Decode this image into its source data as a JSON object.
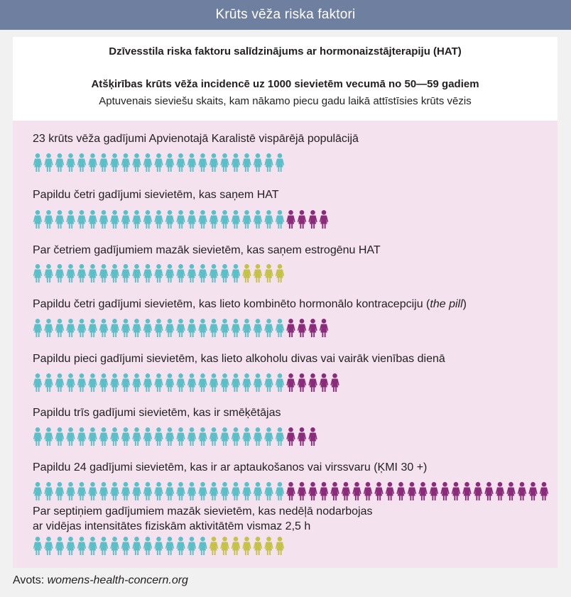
{
  "title": "Krūts vēža riska faktori",
  "header": {
    "line1": "Dzīvesstila riska faktoru salīdzinājums ar hormonaizstājterapiju (HAT)",
    "line2": "Atšķirības krūts vēža incidencē uz 1000 sievietēm vecumā no 50—59 gadiem",
    "line3": "Aptuvenais sieviešu skaits, kam nākamo piecu gadu laikā attīstīsies krūts vēzis"
  },
  "colors": {
    "baseline": "#5bbfc8",
    "additional": "#8b2c7b",
    "fewer": "#c5c24a",
    "title_bar": "#6e7fa0",
    "panel": "#f4e2ee"
  },
  "chart_data": {
    "type": "pictogram",
    "unit": "1 figure = 1 case per 1000 women",
    "baseline_cases": 23,
    "rows": [
      {
        "label": "23 krūts vēža gadījumi Apvienotajā Karalistē vispārējā populācijā",
        "baseline": 23,
        "additional": 0,
        "fewer": 0
      },
      {
        "label": "Papildu četri gadījumi sievietēm, kas saņem HAT",
        "baseline": 23,
        "additional": 4,
        "fewer": 0
      },
      {
        "label": "Par četriem gadījumiem mazāk sievietēm, kas saņem estrogēnu HAT",
        "baseline": 19,
        "additional": 0,
        "fewer": 4
      },
      {
        "label_pre": "Papildu četri gadījumi sievietēm, kas lieto kombinēto hormonālo kontracepciju (",
        "label_italic": "the pill",
        "label_post": ")",
        "baseline": 23,
        "additional": 4,
        "fewer": 0
      },
      {
        "label": "Papildu pieci gadījumi sievietēm, kas lieto alkoholu divas vai vairāk vienības dienā",
        "baseline": 23,
        "additional": 5,
        "fewer": 0
      },
      {
        "label": "Papildu trīs gadījumi sievietēm, kas ir smēķētājas",
        "baseline": 23,
        "additional": 3,
        "fewer": 0
      },
      {
        "label": "Papildu 24 gadījumi sievietēm, kas ir ar aptaukošanos vai virssvaru (ĶMI 30 +)",
        "baseline": 23,
        "additional": 24,
        "fewer": 0
      },
      {
        "label_line1": "Par septiņiem gadījumiem mazāk sievietēm, kas nedēļā nodarbojas",
        "label_line2": "ar vidējas intensitātes fiziskām aktivitātēm vismaz 2,5 h",
        "baseline": 16,
        "additional": 0,
        "fewer": 7
      }
    ]
  },
  "source": {
    "prefix": "Avots: ",
    "url": "womens-health-concern.org"
  }
}
